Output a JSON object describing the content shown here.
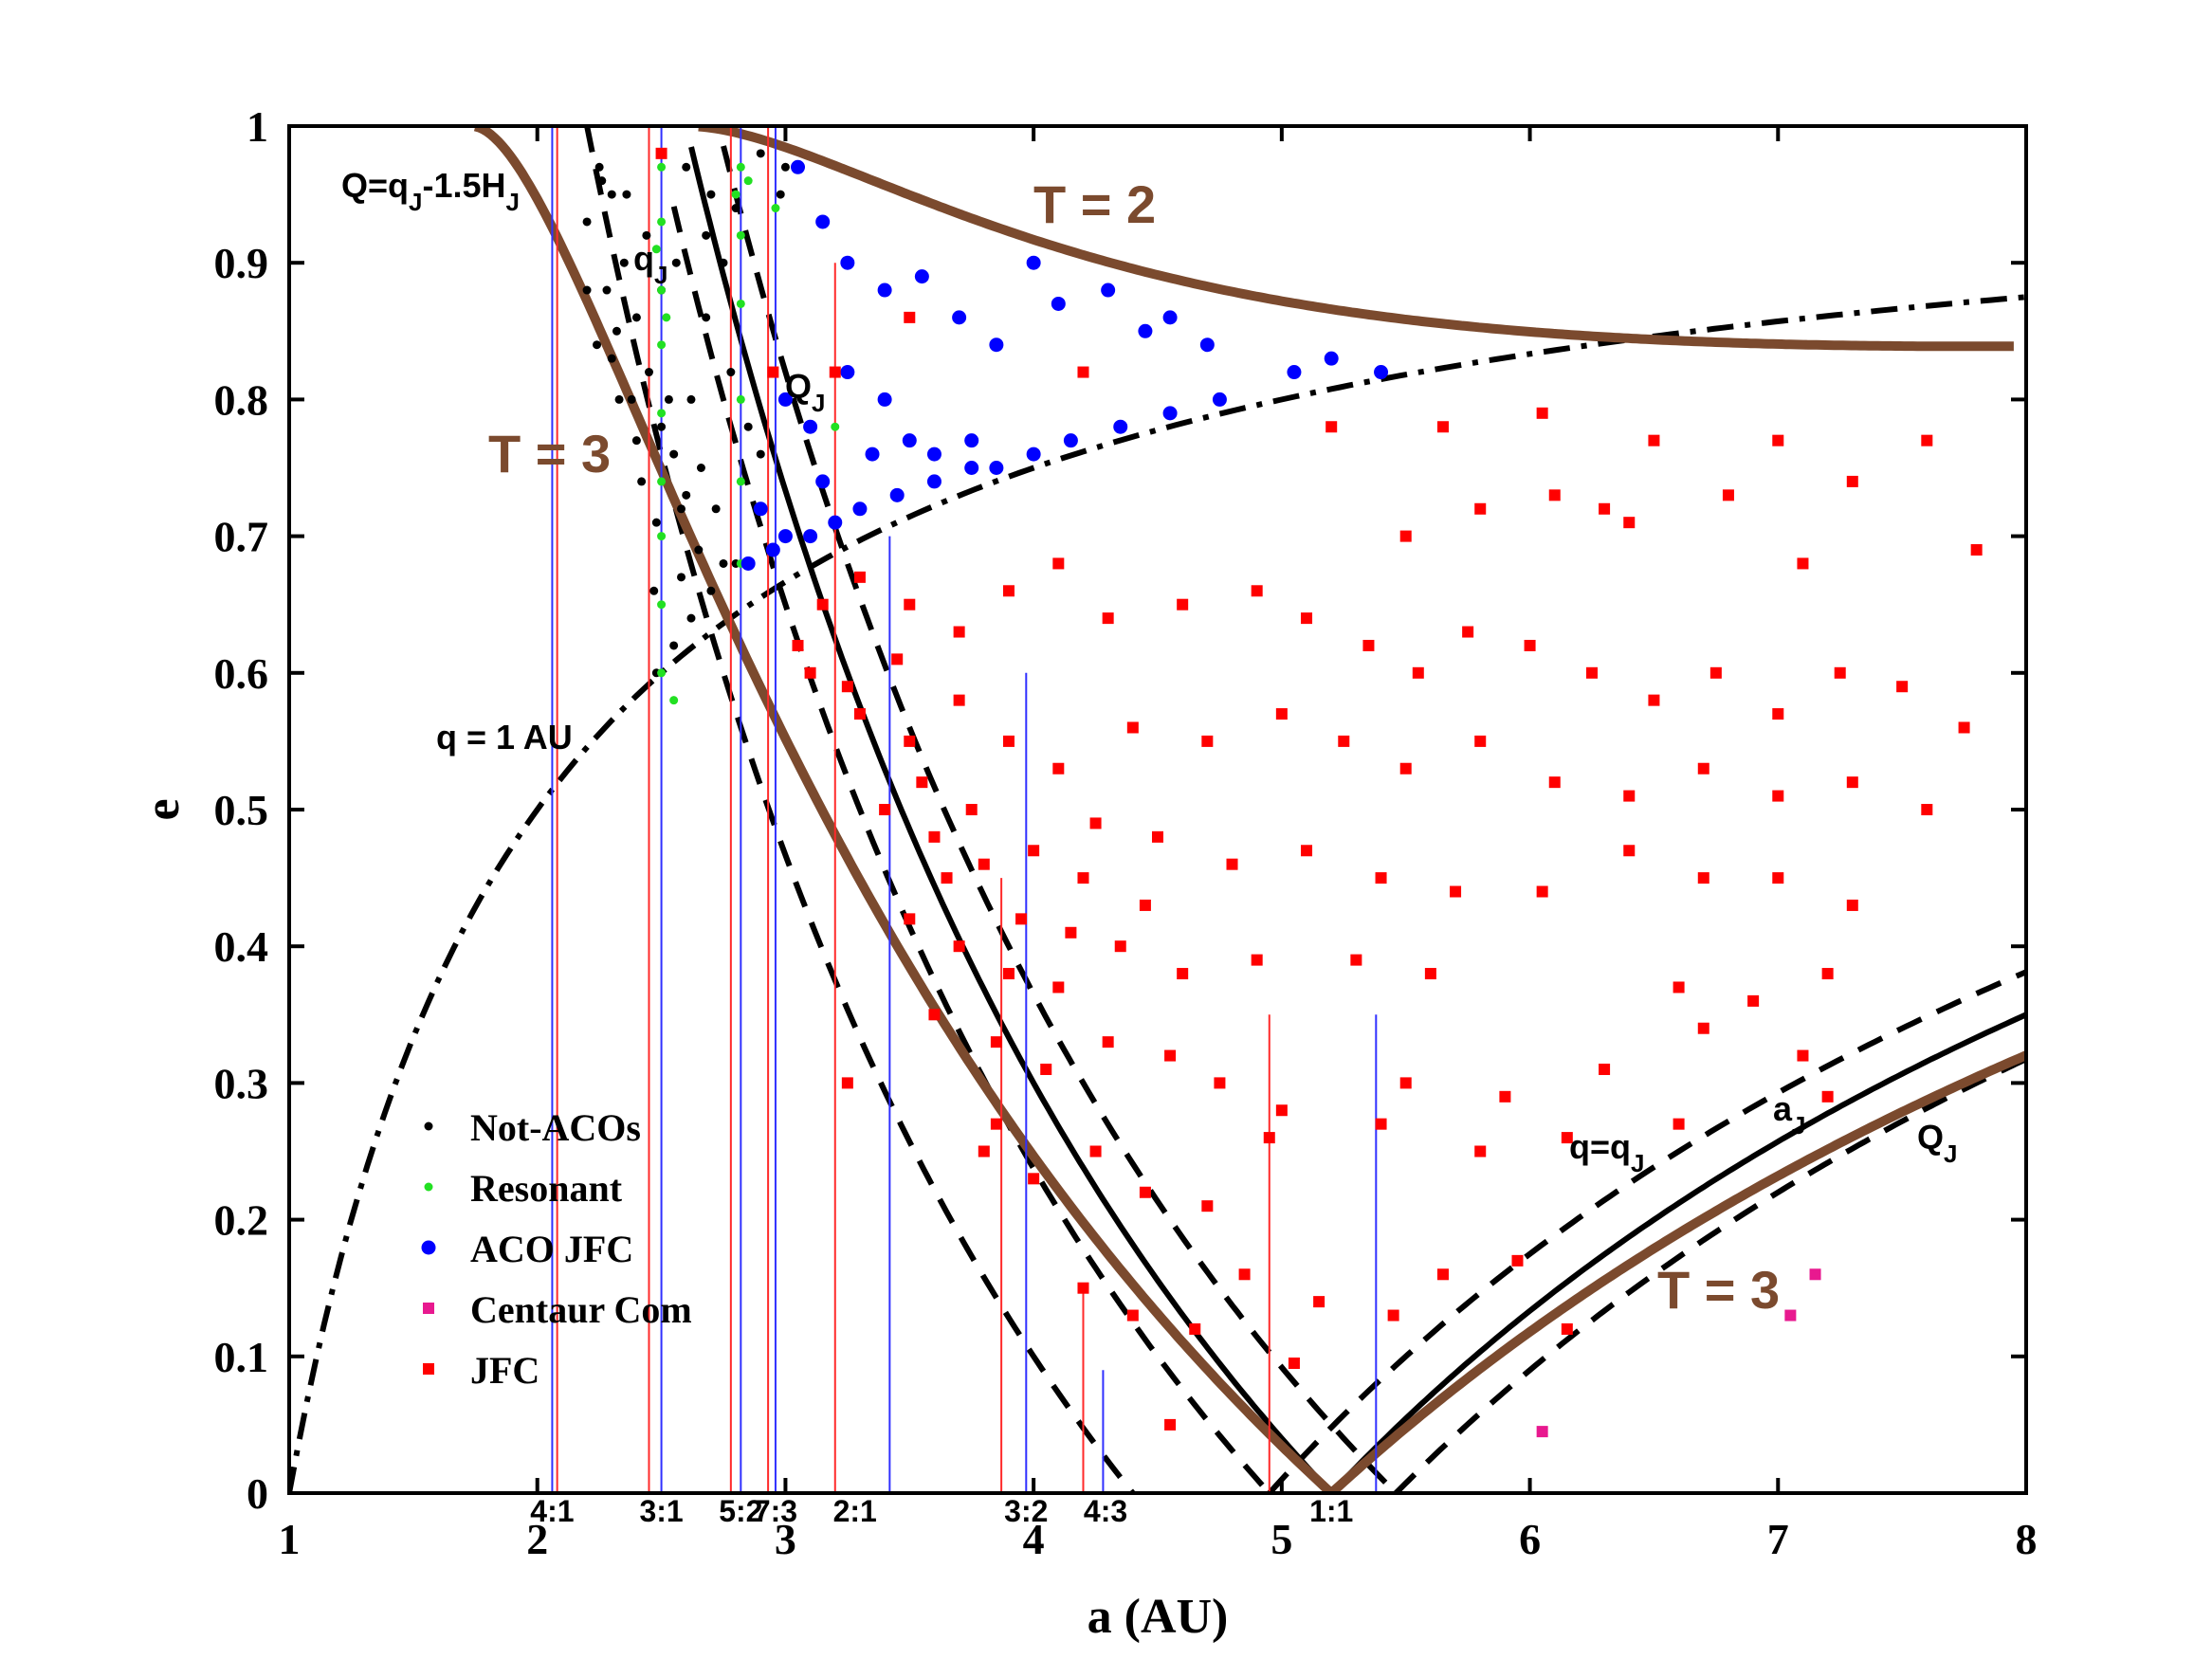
{
  "chart_data": {
    "type": "scatter",
    "xlabel": "a (AU)",
    "ylabel": "e",
    "xlim": [
      1,
      8
    ],
    "ylim": [
      0,
      1
    ],
    "xticks": [
      1,
      2,
      3,
      4,
      5,
      6,
      7,
      8
    ],
    "yticks": [
      0,
      0.1,
      0.2,
      0.3,
      0.4,
      0.5,
      0.6,
      0.7,
      0.8,
      0.9,
      1
    ],
    "grid": false,
    "legend_position": "bottom-left",
    "legend": [
      {
        "label": "Not-ACOs",
        "color": "#000000",
        "marker": "dot"
      },
      {
        "label": "Resonant",
        "color": "#22e022",
        "marker": "dot"
      },
      {
        "label": "ACO JFC",
        "color": "#0000ff",
        "marker": "circle"
      },
      {
        "label": "Centaur Com",
        "color": "#e8198f",
        "marker": "square"
      },
      {
        "label": "JFC",
        "color": "#ff0000",
        "marker": "square"
      }
    ],
    "resonances": [
      {
        "label": "4:1",
        "a": 2.06
      },
      {
        "label": "3:1",
        "a": 2.5
      },
      {
        "label": "5:2",
        "a": 2.82
      },
      {
        "label": "7:3",
        "a": 2.96
      },
      {
        "label": "2:1",
        "a": 3.28
      },
      {
        "label": "3:2",
        "a": 3.97
      },
      {
        "label": "4:3",
        "a": 4.29
      },
      {
        "label": "1:1",
        "a": 5.2
      }
    ],
    "annotations": [
      {
        "text": "Q=q",
        "sub": "J",
        "tail": "-1.5H",
        "sub2": "J"
      },
      {
        "text": "q = 1 AU"
      },
      {
        "text": "Q",
        "sub": "J"
      },
      {
        "text": "q=q",
        "sub": "J"
      },
      {
        "text": "a",
        "sub": "J"
      },
      {
        "text": "Q",
        "sub": "J"
      },
      {
        "text": "q",
        "sub": "J"
      }
    ],
    "tisserand_labels": [
      "T = 2",
      "T = 3",
      "T = 3"
    ],
    "curves": {
      "q_1AU": "e = 1 - 1/a",
      "Q_qJ_minus_1.5H": "a(1+e) = 4.4",
      "q_qJ": "a(1-e) = 4.95",
      "a_J": "a(1-e) = 5.2 (a<5.2) ; a(1+e)=5.2",
      "Q_J": "a(1+e) = 5.46 / a(1-e)=5.46",
      "T2": "Tisserand T_J = 2",
      "T3": "Tisserand T_J = 3"
    },
    "series": [
      {
        "name": "Not-ACOs",
        "color": "#000000",
        "points": [
          [
            2.25,
            0.97
          ],
          [
            2.3,
            0.95
          ],
          [
            2.2,
            0.93
          ],
          [
            2.35,
            0.9
          ],
          [
            2.28,
            0.88
          ],
          [
            2.4,
            0.86
          ],
          [
            2.32,
            0.85
          ],
          [
            2.24,
            0.84
          ],
          [
            2.45,
            0.82
          ],
          [
            2.38,
            0.8
          ],
          [
            2.5,
            0.78
          ],
          [
            2.55,
            0.76
          ],
          [
            2.42,
            0.74
          ],
          [
            2.6,
            0.73
          ],
          [
            2.48,
            0.71
          ],
          [
            2.65,
            0.69
          ],
          [
            2.58,
            0.67
          ],
          [
            2.7,
            0.66
          ],
          [
            2.62,
            0.64
          ],
          [
            2.55,
            0.62
          ],
          [
            2.48,
            0.6
          ],
          [
            2.75,
            0.68
          ],
          [
            2.66,
            0.75
          ],
          [
            2.53,
            0.8
          ],
          [
            2.44,
            0.92
          ],
          [
            2.36,
            0.95
          ],
          [
            2.6,
            0.97
          ],
          [
            2.7,
            0.95
          ],
          [
            2.8,
            0.94
          ],
          [
            2.75,
            0.9
          ],
          [
            2.68,
            0.86
          ],
          [
            2.78,
            0.82
          ],
          [
            2.85,
            0.78
          ],
          [
            2.72,
            0.72
          ],
          [
            2.5,
            0.88
          ],
          [
            2.3,
            0.83
          ],
          [
            2.2,
            0.88
          ],
          [
            2.4,
            0.77
          ],
          [
            2.62,
            0.8
          ],
          [
            2.9,
            0.76
          ],
          [
            2.8,
            0.68
          ],
          [
            2.58,
            0.72
          ],
          [
            2.47,
            0.66
          ],
          [
            2.68,
            0.92
          ],
          [
            2.56,
            0.9
          ],
          [
            2.33,
            0.8
          ],
          [
            2.26,
            0.96
          ],
          [
            2.9,
            0.98
          ],
          [
            3.0,
            0.97
          ],
          [
            2.98,
            0.95
          ]
        ]
      },
      {
        "name": "Resonant",
        "color": "#22e022",
        "points": [
          [
            2.5,
            0.97
          ],
          [
            2.5,
            0.93
          ],
          [
            2.5,
            0.88
          ],
          [
            2.5,
            0.84
          ],
          [
            2.5,
            0.79
          ],
          [
            2.5,
            0.74
          ],
          [
            2.5,
            0.7
          ],
          [
            2.5,
            0.65
          ],
          [
            2.5,
            0.6
          ],
          [
            2.48,
            0.91
          ],
          [
            2.52,
            0.86
          ],
          [
            2.82,
            0.97
          ],
          [
            2.82,
            0.92
          ],
          [
            2.82,
            0.87
          ],
          [
            2.82,
            0.8
          ],
          [
            2.82,
            0.74
          ],
          [
            2.82,
            0.68
          ],
          [
            2.8,
            0.95
          ],
          [
            2.85,
            0.96
          ],
          [
            2.96,
            0.94
          ],
          [
            3.2,
            0.78
          ],
          [
            3.3,
            0.72
          ],
          [
            2.55,
            0.58
          ]
        ]
      },
      {
        "name": "ACO JFC",
        "color": "#0000ff",
        "points": [
          [
            3.05,
            0.97
          ],
          [
            3.15,
            0.93
          ],
          [
            3.25,
            0.9
          ],
          [
            3.4,
            0.88
          ],
          [
            3.55,
            0.89
          ],
          [
            3.7,
            0.86
          ],
          [
            3.85,
            0.84
          ],
          [
            4.0,
            0.9
          ],
          [
            4.1,
            0.87
          ],
          [
            4.3,
            0.88
          ],
          [
            4.45,
            0.85
          ],
          [
            4.55,
            0.86
          ],
          [
            4.7,
            0.84
          ],
          [
            3.0,
            0.8
          ],
          [
            3.1,
            0.78
          ],
          [
            3.25,
            0.82
          ],
          [
            3.4,
            0.8
          ],
          [
            3.5,
            0.77
          ],
          [
            3.6,
            0.76
          ],
          [
            3.75,
            0.77
          ],
          [
            3.85,
            0.75
          ],
          [
            4.0,
            0.76
          ],
          [
            4.15,
            0.77
          ],
          [
            4.35,
            0.78
          ],
          [
            4.55,
            0.79
          ],
          [
            4.75,
            0.8
          ],
          [
            5.05,
            0.82
          ],
          [
            5.2,
            0.83
          ],
          [
            5.4,
            0.82
          ],
          [
            2.9,
            0.72
          ],
          [
            3.0,
            0.7
          ],
          [
            3.1,
            0.7
          ],
          [
            3.2,
            0.71
          ],
          [
            3.3,
            0.72
          ],
          [
            3.45,
            0.73
          ],
          [
            3.6,
            0.74
          ],
          [
            3.75,
            0.75
          ],
          [
            2.85,
            0.68
          ],
          [
            2.95,
            0.69
          ],
          [
            3.15,
            0.74
          ],
          [
            3.35,
            0.76
          ]
        ]
      },
      {
        "name": "Centaur Com",
        "color": "#e8198f",
        "points": [
          [
            6.05,
            0.045
          ],
          [
            7.05,
            0.13
          ],
          [
            7.15,
            0.16
          ]
        ]
      },
      {
        "name": "JFC",
        "color": "#ff0000",
        "points": [
          [
            2.5,
            0.98
          ],
          [
            2.95,
            0.82
          ],
          [
            3.2,
            0.82
          ],
          [
            3.5,
            0.86
          ],
          [
            4.2,
            0.82
          ],
          [
            5.2,
            0.78
          ],
          [
            5.65,
            0.78
          ],
          [
            6.05,
            0.79
          ],
          [
            6.5,
            0.77
          ],
          [
            7.0,
            0.77
          ],
          [
            7.6,
            0.77
          ],
          [
            6.1,
            0.73
          ],
          [
            6.3,
            0.72
          ],
          [
            6.8,
            0.73
          ],
          [
            7.3,
            0.74
          ],
          [
            5.5,
            0.7
          ],
          [
            5.8,
            0.72
          ],
          [
            6.4,
            0.71
          ],
          [
            7.8,
            0.69
          ],
          [
            7.1,
            0.68
          ],
          [
            3.3,
            0.67
          ],
          [
            3.5,
            0.65
          ],
          [
            3.7,
            0.63
          ],
          [
            3.9,
            0.66
          ],
          [
            4.1,
            0.68
          ],
          [
            4.3,
            0.64
          ],
          [
            4.6,
            0.65
          ],
          [
            4.9,
            0.66
          ],
          [
            5.1,
            0.64
          ],
          [
            5.35,
            0.62
          ],
          [
            5.55,
            0.6
          ],
          [
            5.75,
            0.63
          ],
          [
            6.0,
            0.62
          ],
          [
            6.25,
            0.6
          ],
          [
            6.5,
            0.58
          ],
          [
            6.75,
            0.6
          ],
          [
            7.0,
            0.57
          ],
          [
            7.25,
            0.6
          ],
          [
            7.5,
            0.59
          ],
          [
            7.75,
            0.56
          ],
          [
            3.1,
            0.6
          ],
          [
            3.3,
            0.57
          ],
          [
            3.5,
            0.55
          ],
          [
            3.7,
            0.58
          ],
          [
            3.9,
            0.55
          ],
          [
            4.1,
            0.53
          ],
          [
            4.4,
            0.56
          ],
          [
            4.7,
            0.55
          ],
          [
            5.0,
            0.57
          ],
          [
            5.25,
            0.55
          ],
          [
            5.5,
            0.53
          ],
          [
            5.8,
            0.55
          ],
          [
            6.1,
            0.52
          ],
          [
            6.4,
            0.51
          ],
          [
            6.7,
            0.53
          ],
          [
            7.0,
            0.51
          ],
          [
            7.3,
            0.52
          ],
          [
            7.6,
            0.5
          ],
          [
            3.4,
            0.5
          ],
          [
            3.6,
            0.48
          ],
          [
            3.8,
            0.46
          ],
          [
            4.0,
            0.47
          ],
          [
            4.2,
            0.45
          ],
          [
            4.5,
            0.48
          ],
          [
            4.8,
            0.46
          ],
          [
            5.1,
            0.47
          ],
          [
            5.4,
            0.45
          ],
          [
            5.7,
            0.44
          ],
          [
            6.05,
            0.44
          ],
          [
            6.4,
            0.47
          ],
          [
            6.7,
            0.45
          ],
          [
            7.0,
            0.45
          ],
          [
            7.3,
            0.43
          ],
          [
            3.5,
            0.42
          ],
          [
            3.7,
            0.4
          ],
          [
            3.9,
            0.38
          ],
          [
            4.1,
            0.37
          ],
          [
            4.35,
            0.4
          ],
          [
            4.6,
            0.38
          ],
          [
            4.9,
            0.39
          ],
          [
            5.3,
            0.39
          ],
          [
            5.6,
            0.38
          ],
          [
            6.6,
            0.37
          ],
          [
            6.9,
            0.36
          ],
          [
            7.2,
            0.38
          ],
          [
            3.6,
            0.35
          ],
          [
            3.85,
            0.33
          ],
          [
            4.05,
            0.31
          ],
          [
            4.3,
            0.33
          ],
          [
            4.55,
            0.32
          ],
          [
            4.75,
            0.3
          ],
          [
            5.0,
            0.28
          ],
          [
            5.5,
            0.3
          ],
          [
            5.9,
            0.29
          ],
          [
            6.3,
            0.31
          ],
          [
            6.7,
            0.34
          ],
          [
            7.1,
            0.32
          ],
          [
            3.8,
            0.25
          ],
          [
            4.0,
            0.23
          ],
          [
            4.25,
            0.25
          ],
          [
            4.45,
            0.22
          ],
          [
            4.7,
            0.21
          ],
          [
            4.95,
            0.26
          ],
          [
            5.4,
            0.27
          ],
          [
            5.8,
            0.25
          ],
          [
            6.15,
            0.26
          ],
          [
            6.6,
            0.27
          ],
          [
            7.2,
            0.29
          ],
          [
            4.2,
            0.15
          ],
          [
            4.4,
            0.13
          ],
          [
            4.65,
            0.12
          ],
          [
            4.85,
            0.16
          ],
          [
            5.15,
            0.14
          ],
          [
            5.45,
            0.13
          ],
          [
            5.65,
            0.16
          ],
          [
            5.95,
            0.17
          ],
          [
            6.15,
            0.12
          ],
          [
            3.05,
            0.62
          ],
          [
            3.15,
            0.65
          ],
          [
            3.25,
            0.59
          ],
          [
            3.45,
            0.61
          ],
          [
            3.55,
            0.52
          ],
          [
            3.65,
            0.45
          ],
          [
            3.75,
            0.5
          ],
          [
            3.95,
            0.42
          ],
          [
            4.15,
            0.41
          ],
          [
            4.25,
            0.49
          ],
          [
            4.45,
            0.43
          ],
          [
            3.25,
            0.3
          ],
          [
            3.85,
            0.27
          ],
          [
            4.55,
            0.05
          ],
          [
            5.05,
            0.095
          ]
        ]
      }
    ]
  }
}
